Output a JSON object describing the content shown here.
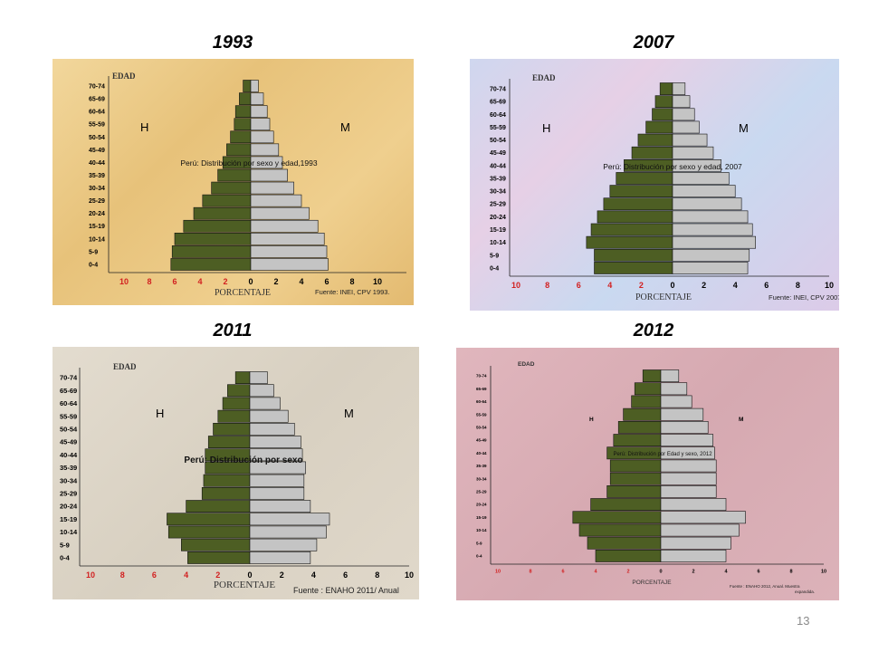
{
  "page_number": "13",
  "colors": {
    "male": "#4d5e23",
    "female": "#c4c4c4",
    "axis_neg": "#d22020",
    "axis_pos": "#000000"
  },
  "chart_data": [
    {
      "type": "bar",
      "title": "1993",
      "annotation": "Perú: Distribución por sexo y edad,1993",
      "ylabel": "EDAD",
      "xlabel": "PORCENTAJE",
      "source": "Fuente: INEI, CPV 1993.",
      "left_label": "H",
      "right_label": "M",
      "categories": [
        "0-4",
        "5-9",
        "10-14",
        "15-19",
        "20-24",
        "25-29",
        "30-34",
        "35-39",
        "40-44",
        "45-49",
        "50-54",
        "55-59",
        "60-64",
        "65-69",
        "70-74"
      ],
      "x_ticks": [
        "10",
        "8",
        "6",
        "4",
        "2",
        "0",
        "2",
        "4",
        "6",
        "8",
        "10"
      ],
      "xlim": [
        -10,
        10
      ],
      "series": [
        {
          "name": "H",
          "values": [
            6.3,
            6.2,
            6.0,
            5.3,
            4.5,
            3.8,
            3.1,
            2.6,
            2.2,
            1.9,
            1.6,
            1.3,
            1.2,
            0.9,
            0.6
          ]
        },
        {
          "name": "M",
          "values": [
            6.1,
            6.0,
            5.8,
            5.3,
            4.6,
            4.0,
            3.4,
            2.9,
            2.5,
            2.2,
            1.8,
            1.5,
            1.3,
            1.0,
            0.6
          ]
        }
      ]
    },
    {
      "type": "bar",
      "title": "2007",
      "annotation": "Perú: Distribución por sexo y edad, 2007",
      "ylabel": "EDAD",
      "xlabel": "PORCENTAJE",
      "source": "Fuente: INEI, CPV  2007.",
      "left_label": "H",
      "right_label": "M",
      "categories": [
        "0-4",
        "5-9",
        "10-14",
        "15-19",
        "20-24",
        "25-29",
        "30-34",
        "35-39",
        "40-44",
        "45-49",
        "50-54",
        "55-59",
        "60-64",
        "65-69",
        "70-74"
      ],
      "x_ticks": [
        "10",
        "8",
        "6",
        "4",
        "2",
        "0",
        "2",
        "4",
        "6",
        "8",
        "10"
      ],
      "xlim": [
        -10,
        10
      ],
      "series": [
        {
          "name": "H",
          "values": [
            5.0,
            5.0,
            5.5,
            5.2,
            4.8,
            4.4,
            4.0,
            3.6,
            3.1,
            2.6,
            2.2,
            1.7,
            1.3,
            1.1,
            0.8
          ]
        },
        {
          "name": "M",
          "values": [
            4.8,
            4.9,
            5.3,
            5.1,
            4.8,
            4.4,
            4.0,
            3.6,
            3.1,
            2.6,
            2.2,
            1.7,
            1.4,
            1.1,
            0.8
          ]
        }
      ]
    },
    {
      "type": "bar",
      "title": "2011",
      "annotation": "Perú:  Distribución por sexo",
      "ylabel": "EDAD",
      "xlabel": "PORCENTAJE",
      "source": "Fuente :   ENAHO  2011/ Anual",
      "left_label": "H",
      "right_label": "M",
      "categories": [
        "0-4",
        "5-9",
        "10-14",
        "15-19",
        "20-24",
        "25-29",
        "30-34",
        "35-39",
        "40-44",
        "45-49",
        "50-54",
        "55-59",
        "60-64",
        "65-69",
        "70-74"
      ],
      "x_ticks": [
        "10",
        "8",
        "6",
        "4",
        "2",
        "0",
        "2",
        "4",
        "6",
        "8",
        "10"
      ],
      "xlim": [
        -10,
        10
      ],
      "series": [
        {
          "name": "H",
          "values": [
            3.9,
            4.3,
            5.1,
            5.2,
            4.0,
            3.0,
            2.9,
            2.8,
            2.8,
            2.6,
            2.3,
            2.0,
            1.7,
            1.4,
            0.9
          ]
        },
        {
          "name": "M",
          "values": [
            3.8,
            4.2,
            4.8,
            5.0,
            3.8,
            3.4,
            3.4,
            3.5,
            3.3,
            3.2,
            2.8,
            2.4,
            1.9,
            1.5,
            1.1
          ]
        }
      ]
    },
    {
      "type": "bar",
      "title": "2012",
      "annotation": "Perú: Distribución por Edad y sexo, 2012",
      "ylabel": "EDAD",
      "xlabel": "PORCENTAJE",
      "source_line1": "Fuente :  ENAHO 2012, Anual. Muestra",
      "source_line2": "expandida.",
      "left_label": "H",
      "right_label": "M",
      "categories": [
        "0-4",
        "5-9",
        "10-14",
        "15-19",
        "20-24",
        "25-29",
        "30-34",
        "35-39",
        "40-44",
        "45-49",
        "50-54",
        "55-59",
        "60-64",
        "65-69",
        "70-74"
      ],
      "x_ticks": [
        "10",
        "8",
        "6",
        "4",
        "2",
        "0",
        "2",
        "4",
        "6",
        "8",
        "10"
      ],
      "xlim": [
        -10,
        10
      ],
      "series": [
        {
          "name": "H",
          "values": [
            4.0,
            4.5,
            5.0,
            5.4,
            4.3,
            3.3,
            3.1,
            3.1,
            3.3,
            2.9,
            2.6,
            2.3,
            1.8,
            1.6,
            1.1
          ]
        },
        {
          "name": "M",
          "values": [
            4.0,
            4.3,
            4.8,
            5.2,
            4.0,
            3.4,
            3.4,
            3.4,
            3.3,
            3.2,
            2.9,
            2.6,
            1.9,
            1.6,
            1.1
          ]
        }
      ]
    }
  ]
}
